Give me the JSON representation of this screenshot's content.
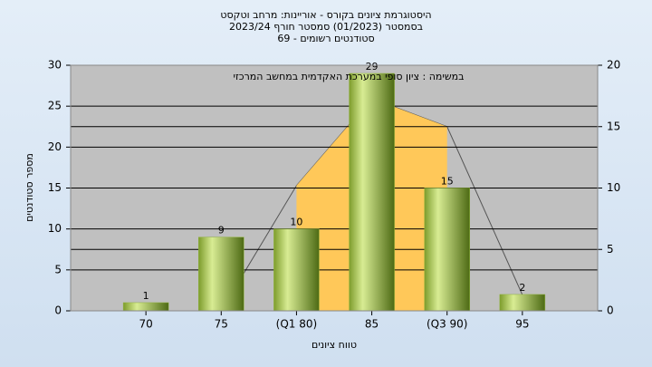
{
  "chart_data": {
    "type": "bar",
    "title": [
      "היסטוגרמת ציונים בקורס - אוריינות: מרחב וטקסט",
      "בסמסטר  (01/2023)  סמסטר חורף 2023/24",
      "סטודנטים רשומים - 69"
    ],
    "subtitle": "במשימה : ציון סופי במערכת האקדמית במחשב המרכזי",
    "x_label": "טווח ציונים",
    "y_label": "מספר סטודנטים",
    "categories": [
      "70",
      "75",
      "(Q1 80)",
      "85",
      "(Q3 90)",
      "95"
    ],
    "values": [
      1,
      9,
      10,
      29,
      15,
      2
    ],
    "color": "#8fb33a",
    "areas": [
      {
        "color": "#c0c0c0",
        "axis": "y2",
        "values": [
          0,
          0,
          10.2,
          17.3,
          15,
          1.3
        ]
      },
      {
        "color": "#ffc859",
        "axis": "y2",
        "values": [
          null,
          null,
          10.2,
          17.3,
          15,
          null
        ]
      }
    ],
    "ylim": [
      0,
      30
    ],
    "yticks": [
      0,
      5,
      10,
      15,
      20,
      25,
      30
    ],
    "y2lim": [
      0,
      20
    ],
    "y2ticks": [
      0,
      5,
      10,
      15,
      20
    ],
    "grid": true
  }
}
